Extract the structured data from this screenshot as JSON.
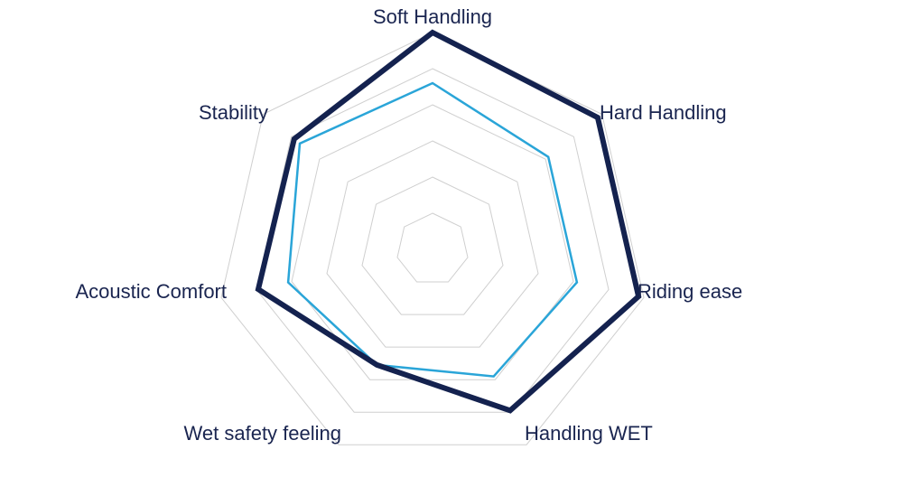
{
  "chart_data": {
    "type": "radar",
    "axes": [
      "Soft Handling",
      "Hard Handling",
      "Riding ease",
      "Handling WET",
      "Wet safety feeling",
      "Acoustic Comfort",
      "Stability"
    ],
    "levels": 6,
    "range": [
      0,
      6
    ],
    "grid": true,
    "series": [
      {
        "values": [
          6.0,
          5.85,
          5.85,
          4.95,
          3.55,
          4.95,
          4.9
        ],
        "color": "#14224f"
      },
      {
        "values": [
          4.6,
          4.1,
          4.1,
          3.9,
          3.55,
          4.1,
          4.7
        ],
        "color": "#2aa5d8"
      }
    ],
    "colors": {
      "grid": "#cfcfcf",
      "label": "#1a2550"
    }
  }
}
